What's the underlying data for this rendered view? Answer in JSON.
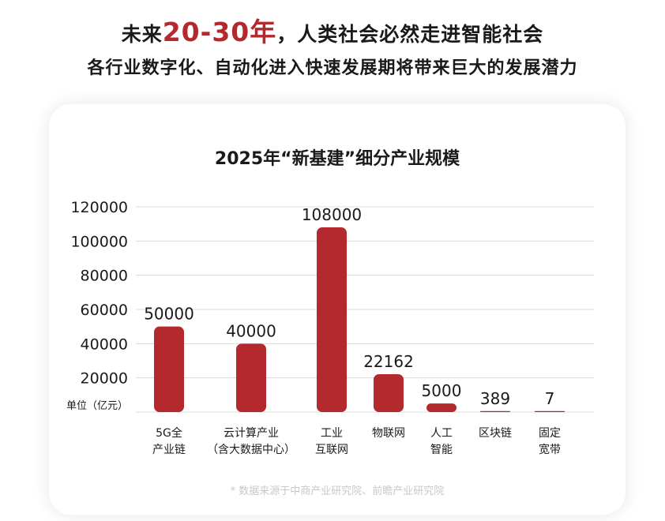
{
  "headline": {
    "line1_pre": "未来",
    "line1_highlight": "20-30年",
    "line1_post": "，人类社会必然走进智能社会",
    "line2": "各行业数字化、自动化进入快速发展期将带来巨大的发展潜力"
  },
  "footnote": "* 数据来源于中商产业研究院、前瞻产业研究院",
  "colors": {
    "bar": "#b3292e",
    "highlight": "#b3292e",
    "grid": "#dcdcdc"
  },
  "chart_data": {
    "type": "bar",
    "title": "2025年“新基建”细分产业规模",
    "unit_label": "单位（亿元）",
    "categories": [
      [
        "5G全",
        "产业链"
      ],
      [
        "云计算产业",
        "（含大数据中心）"
      ],
      [
        "工业",
        "互联网"
      ],
      [
        "物联网"
      ],
      [
        "人工",
        "智能"
      ],
      [
        "区块链"
      ],
      [
        "固定",
        "宽带"
      ]
    ],
    "values": [
      50000,
      40000,
      108000,
      22162,
      5000,
      389,
      7
    ],
    "value_labels": [
      "50000",
      "40000",
      "108000",
      "22162",
      "5000",
      "389",
      "7"
    ],
    "ylim": [
      0,
      120000
    ],
    "yticks": [
      20000,
      40000,
      60000,
      80000,
      100000,
      120000
    ],
    "grid": true
  }
}
